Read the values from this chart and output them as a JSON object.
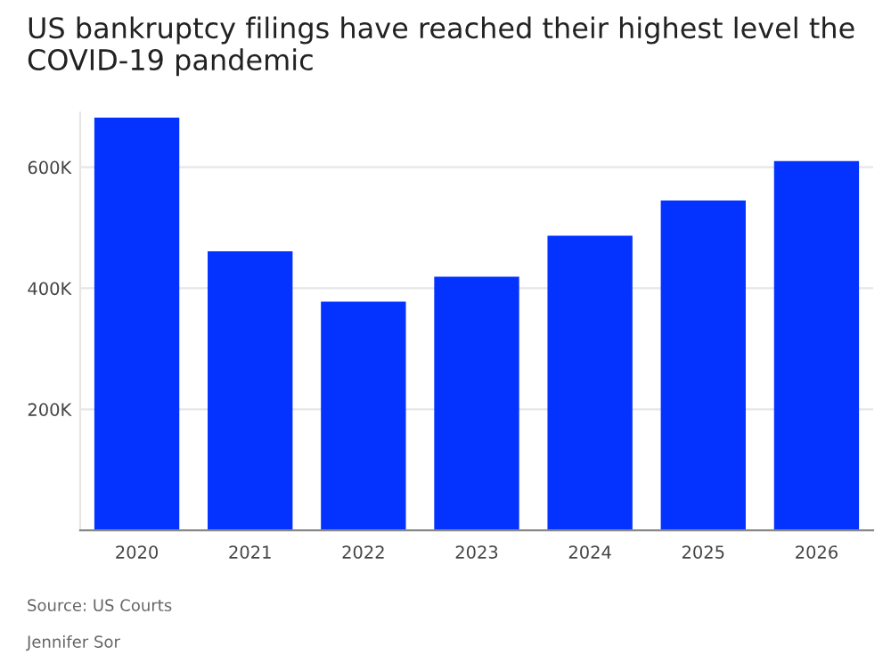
{
  "chart_data": {
    "type": "bar",
    "title": "US bankruptcy filings have reached their highest level the COVID-19 pandemic",
    "categories": [
      "2020",
      "2021",
      "2022",
      "2023",
      "2024",
      "2025",
      "2026"
    ],
    "values": [
      682000,
      461000,
      378000,
      419000,
      487000,
      545000,
      610000
    ],
    "color": "#0433ff",
    "ylim": [
      0,
      690000
    ],
    "yticks": [
      {
        "value": 200000,
        "label": "200K"
      },
      {
        "value": 400000,
        "label": "400K"
      },
      {
        "value": 600000,
        "label": "600K"
      }
    ],
    "grid": "y",
    "annotations": [
      "Source: US Courts",
      "Jennifer Sor"
    ]
  }
}
